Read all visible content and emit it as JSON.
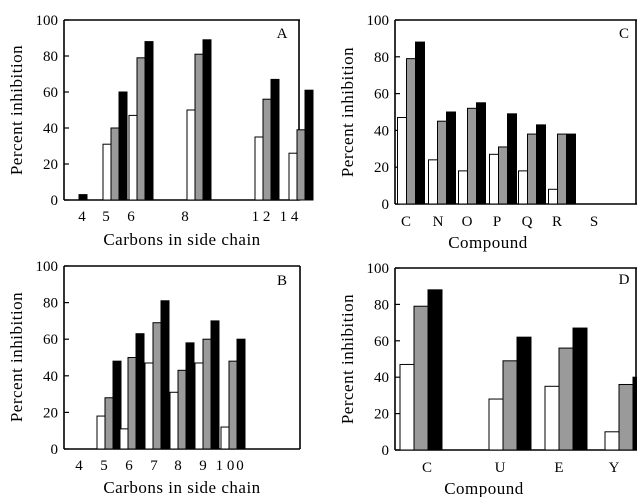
{
  "figure": {
    "series_fills": [
      "#ffffff",
      "#9a9a9a",
      "#000000"
    ]
  },
  "chart_data": [
    {
      "type": "bar",
      "panel": "A",
      "xlabel": "Carbons in side chain",
      "ylabel": "Percent inhibition",
      "ylim": [
        0,
        100
      ],
      "yticks": [
        0,
        20,
        40,
        60,
        80,
        100
      ],
      "grid": false,
      "tick_labels": [
        "4",
        "5",
        "6",
        "8",
        "1 2",
        "1 4"
      ],
      "groups": [
        {
          "x": "4",
          "values": [
            0,
            0,
            3
          ]
        },
        {
          "x": "5",
          "values": [
            31,
            40,
            60
          ]
        },
        {
          "x": "6",
          "values": [
            47,
            79,
            88
          ]
        },
        {
          "x": "8",
          "values": [
            50,
            81,
            89
          ]
        },
        {
          "x": "12",
          "values": [
            35,
            56,
            67
          ]
        },
        {
          "x": "14",
          "values": [
            26,
            39,
            61
          ]
        }
      ]
    },
    {
      "type": "bar",
      "panel": "B",
      "xlabel": "Carbons in side chain",
      "ylabel": "Percent inhibition",
      "ylim": [
        0,
        100
      ],
      "yticks": [
        0,
        20,
        40,
        60,
        80,
        100
      ],
      "grid": false,
      "tick_labels": [
        "4",
        "5",
        "6",
        "7",
        "8",
        "9",
        "1 0"
      ],
      "extra_tick": "0",
      "groups": [
        {
          "x": "4",
          "values": [
            0,
            0,
            0
          ]
        },
        {
          "x": "5",
          "values": [
            18,
            28,
            48
          ]
        },
        {
          "x": "6",
          "values": [
            11,
            50,
            63
          ]
        },
        {
          "x": "7",
          "values": [
            47,
            69,
            81
          ]
        },
        {
          "x": "8",
          "values": [
            31,
            43,
            58
          ]
        },
        {
          "x": "9",
          "values": [
            47,
            60,
            70
          ]
        },
        {
          "x": "10",
          "values": [
            12,
            48,
            60
          ]
        }
      ]
    },
    {
      "type": "bar",
      "panel": "C",
      "xlabel": "Compound",
      "ylabel": "Percent inhibition",
      "ylim": [
        0,
        100
      ],
      "yticks": [
        0,
        20,
        40,
        60,
        80,
        100
      ],
      "grid": false,
      "categories": [
        "C",
        "N",
        "O",
        "P",
        "Q",
        "R",
        "S"
      ],
      "groups": [
        {
          "x": "C",
          "values": [
            47,
            79,
            88
          ]
        },
        {
          "x": "N",
          "values": [
            24,
            45,
            50
          ]
        },
        {
          "x": "O",
          "values": [
            18,
            52,
            55
          ]
        },
        {
          "x": "P",
          "values": [
            27,
            31,
            49
          ]
        },
        {
          "x": "Q",
          "values": [
            18,
            38,
            43
          ]
        },
        {
          "x": "R",
          "values": [
            8,
            38,
            38
          ]
        },
        {
          "x": "S",
          "values": [
            0,
            0,
            0
          ]
        }
      ]
    },
    {
      "type": "bar",
      "panel": "D",
      "xlabel": "Compound",
      "ylabel": "Percent inhibition",
      "ylim": [
        0,
        100
      ],
      "yticks": [
        0,
        20,
        40,
        60,
        80,
        100
      ],
      "grid": false,
      "categories": [
        "C",
        "U",
        "E",
        "Y"
      ],
      "groups": [
        {
          "x": "C",
          "values": [
            47,
            79,
            88
          ]
        },
        {
          "x": "U",
          "values": [
            28,
            49,
            62
          ]
        },
        {
          "x": "E",
          "values": [
            35,
            56,
            67
          ]
        },
        {
          "x": "Y",
          "values": [
            10,
            36,
            40
          ]
        }
      ]
    }
  ]
}
